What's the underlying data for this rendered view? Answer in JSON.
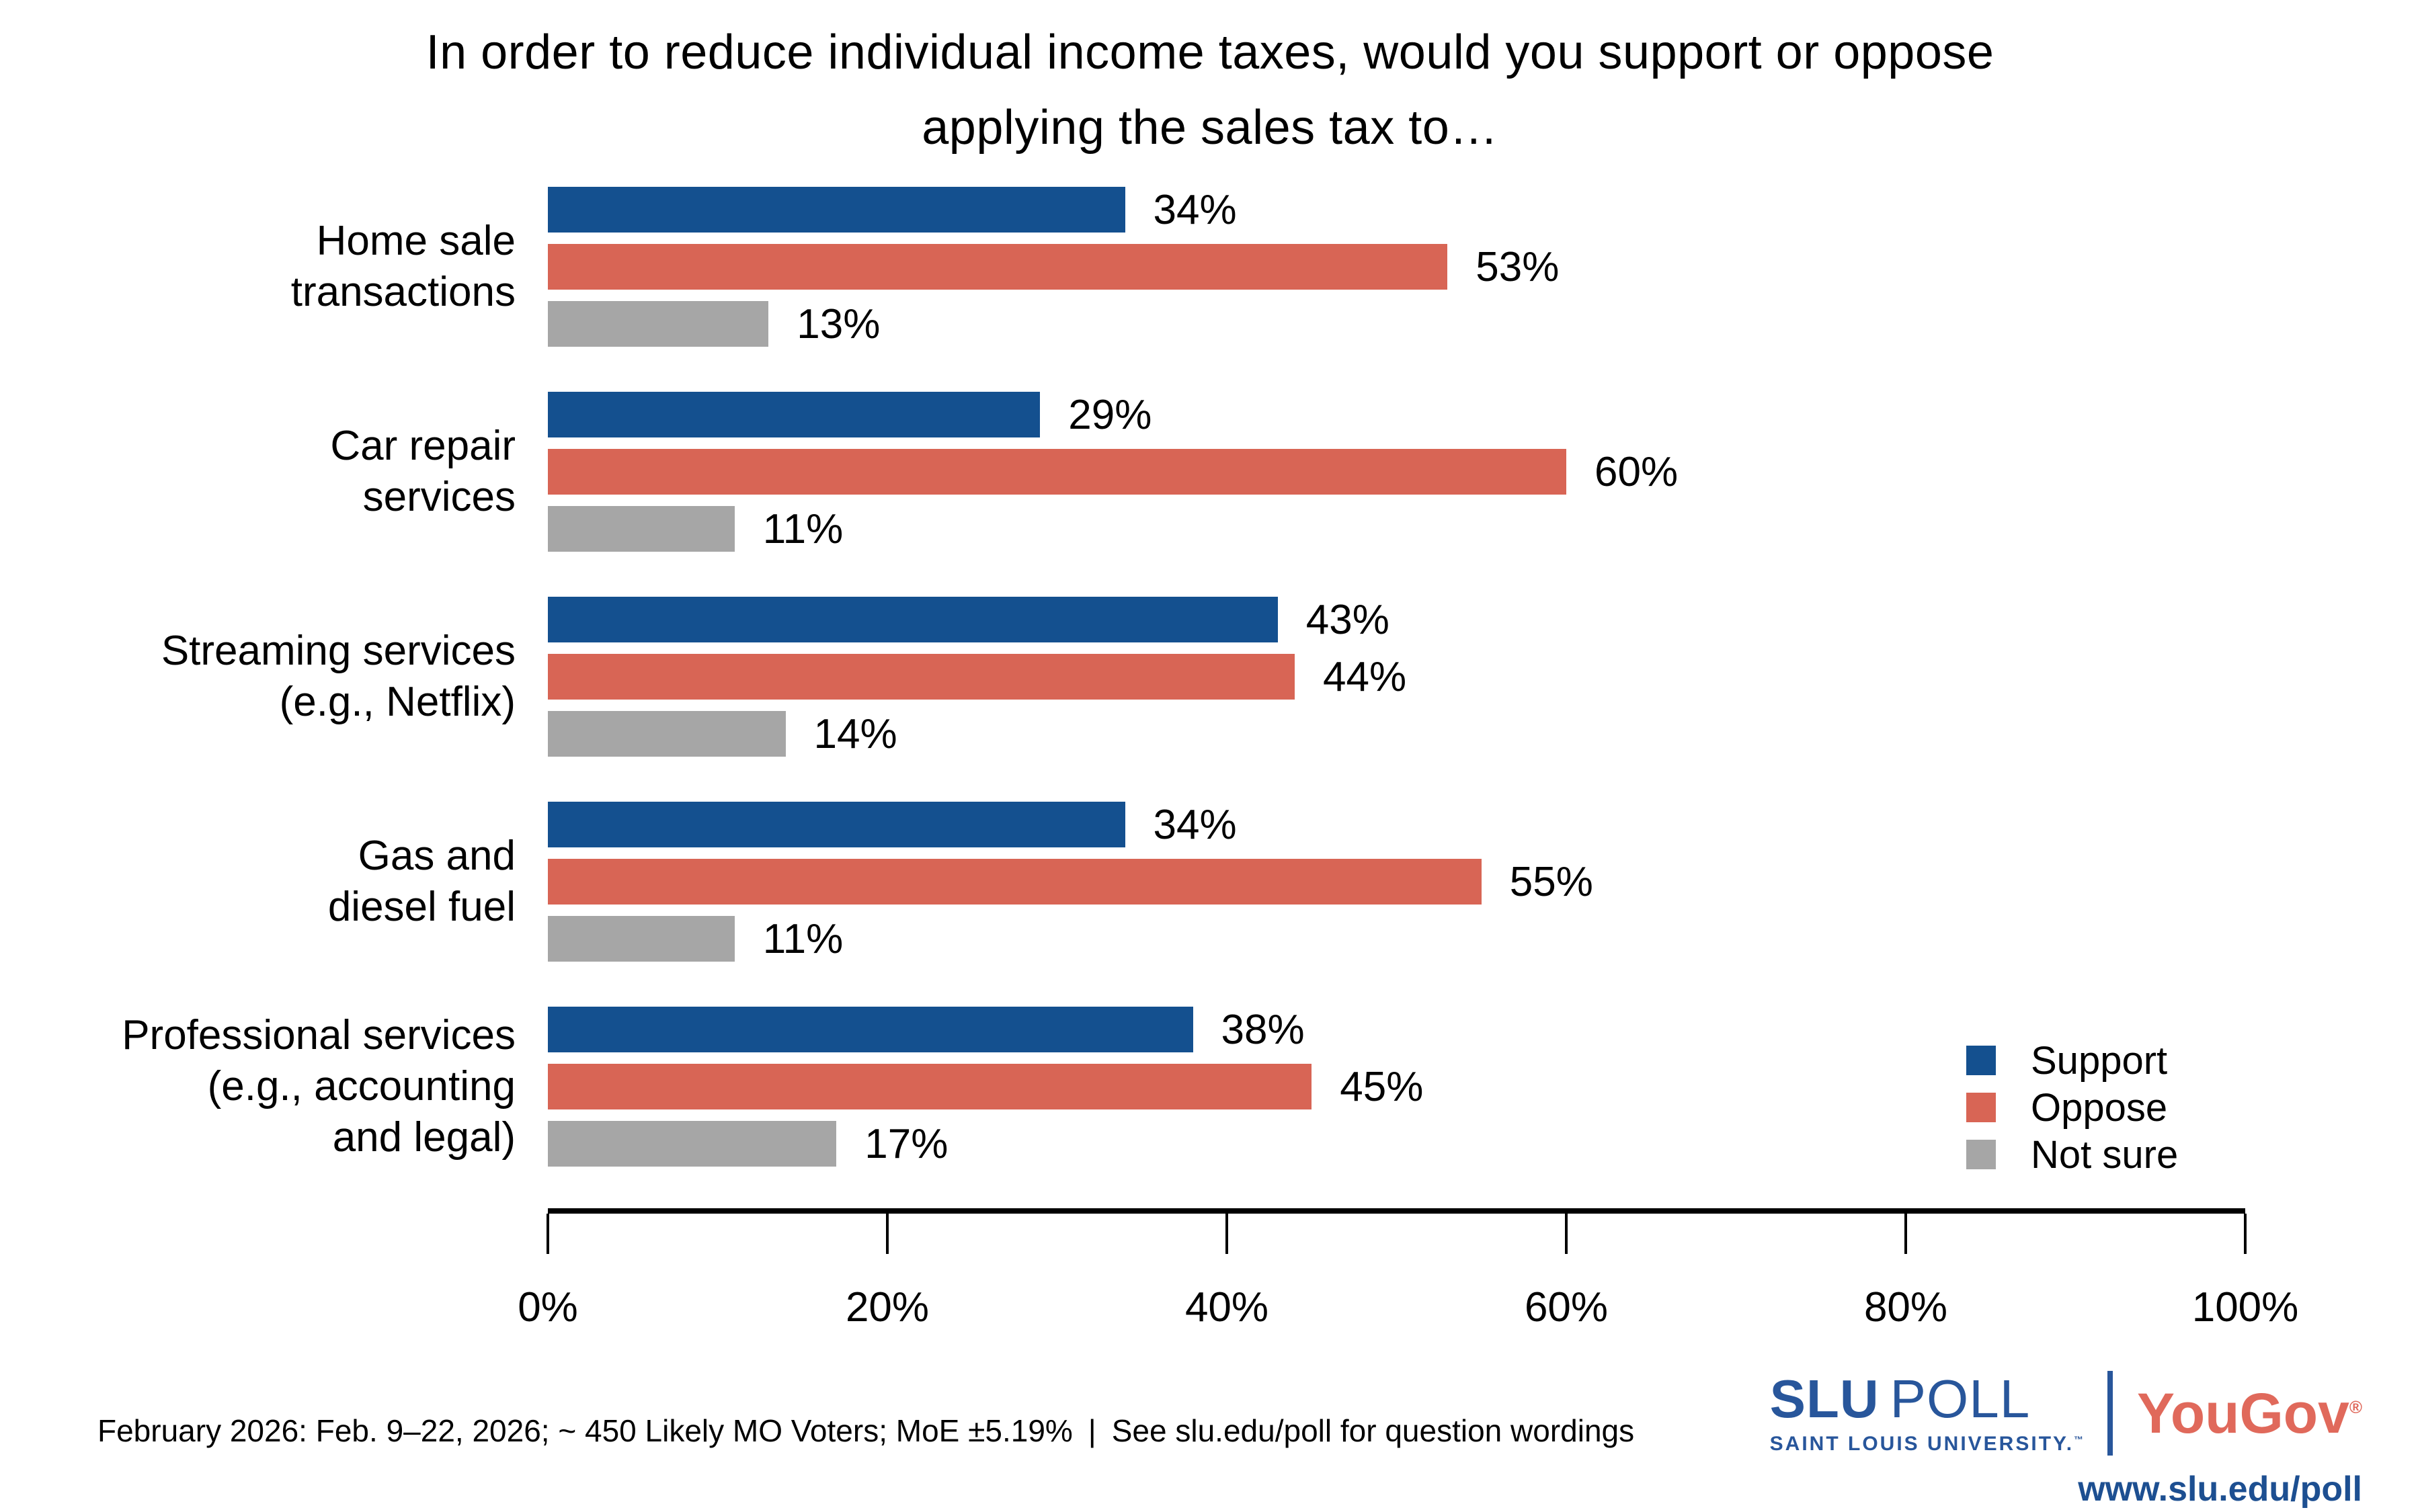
{
  "title": {
    "line1": "In order to reduce individual income taxes, would you support or oppose",
    "line2": "applying the sales tax to…"
  },
  "chart_data": {
    "type": "bar",
    "orientation": "horizontal",
    "title": "In order to reduce individual income taxes, would you support or oppose applying the sales tax to…",
    "categories": [
      [
        "Home sale",
        "transactions"
      ],
      [
        "Car repair",
        "services"
      ],
      [
        "Streaming services",
        "(e.g., Netflix)"
      ],
      [
        "Gas and",
        "diesel fuel"
      ],
      [
        "Professional services",
        "(e.g., accounting",
        "and legal)"
      ]
    ],
    "series": [
      {
        "name": "Support",
        "color": "#14508f",
        "values": [
          34,
          29,
          43,
          34,
          38
        ]
      },
      {
        "name": "Oppose",
        "color": "#d86555",
        "values": [
          53,
          60,
          44,
          55,
          45
        ]
      },
      {
        "name": "Not sure",
        "color": "#a6a6a6",
        "values": [
          13,
          11,
          14,
          11,
          17
        ]
      }
    ],
    "value_suffix": "%",
    "x_ticks": [
      "0%",
      "20%",
      "40%",
      "60%",
      "80%",
      "100%"
    ],
    "xlim": [
      0,
      100
    ],
    "xlabel": "",
    "ylabel": "",
    "grid": false,
    "legend_position": "lower right"
  },
  "footer": {
    "text": "February 2026: Feb. 9–22, 2026; ~ 450 Likely MO Voters; MoE ±5.19% | See slu.edu/poll for question wordings"
  },
  "branding": {
    "slu": "SLU",
    "poll": "POLL",
    "university": "SAINT LOUIS UNIVERSITY.",
    "trademark": "™",
    "yougov": "YouGov",
    "registered": "®",
    "url": "www.slu.edu/poll",
    "slu_blue": "#28569b",
    "url_blue": "#1d4f91",
    "yougov_red": "#e0695b"
  }
}
